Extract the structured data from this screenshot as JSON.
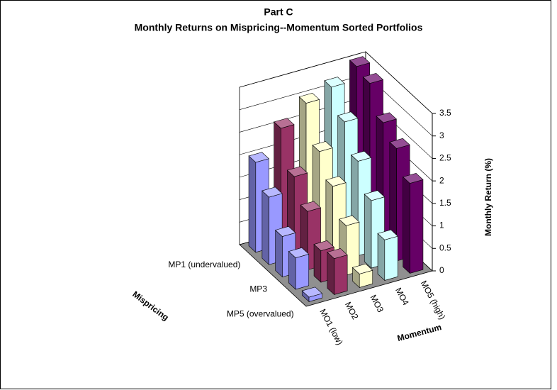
{
  "chart_data": {
    "type": "bar3d",
    "title": "Part C",
    "subtitle": "Monthly Returns on Mispricing--Momentum Sorted Portfolios",
    "x_label": "Momentum",
    "depth_label": "Mispricing",
    "y_label": "Monthly Return (%)",
    "categories": [
      "MO1 (low)",
      "MO2",
      "MO3",
      "MO4",
      "MO5 (high)"
    ],
    "depth_categories": [
      "MP1 (undervalued)",
      null,
      "MP3",
      null,
      "MP5 (overvalued)"
    ],
    "colors": [
      "#9999ff",
      "#993366",
      "#ffffcc",
      "#ccffff",
      "#660066"
    ],
    "values": [
      [
        2.0,
        1.5,
        0.9,
        0.7,
        0.1
      ],
      [
        2.6,
        1.8,
        1.3,
        0.7,
        0.8
      ],
      [
        3.0,
        2.2,
        1.7,
        1.1,
        0.3
      ],
      [
        3.2,
        2.7,
        2.1,
        1.5,
        0.9
      ],
      [
        3.5,
        3.4,
        2.8,
        2.5,
        2.0
      ]
    ],
    "ylim": [
      0,
      3.5
    ],
    "yticks": [
      0,
      0.5,
      1,
      1.5,
      2,
      2.5,
      3,
      3.5
    ],
    "grid": true
  }
}
